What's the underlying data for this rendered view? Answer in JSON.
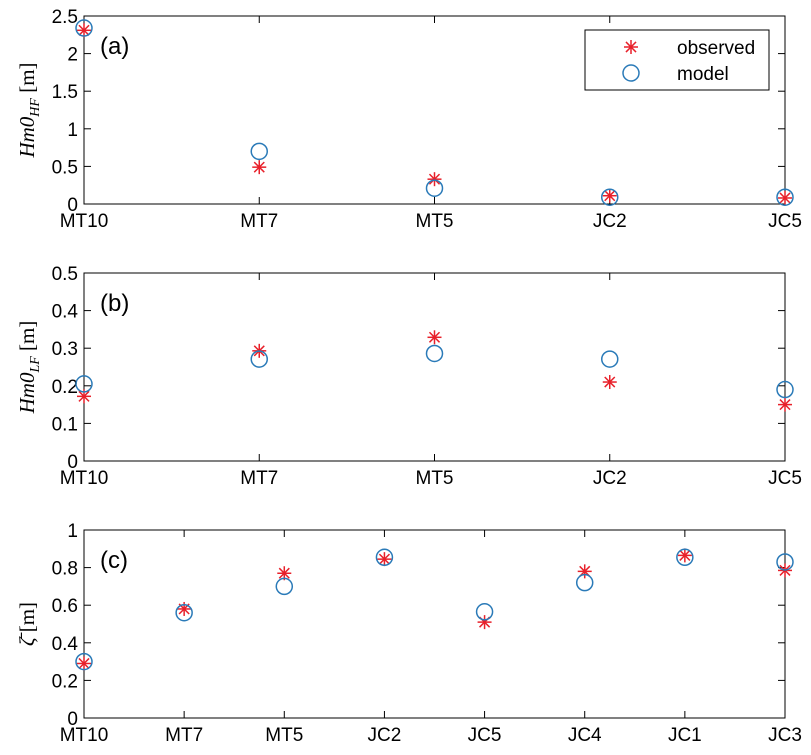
{
  "colors": {
    "observed": "#e8202a",
    "model": "#2a7ab8",
    "axis": "#000000"
  },
  "chart_data": [
    {
      "type": "scatter",
      "panel_label": "(a)",
      "ylabel": "Hm0_HF [m]",
      "ylabel_parts": {
        "main": "Hm0",
        "sub": "HF",
        "unit": "[m]"
      },
      "categories": [
        "MT10",
        "MT7",
        "MT5",
        "JC2",
        "JC5"
      ],
      "ylim": [
        0,
        2.5
      ],
      "yticks": [
        0,
        0.5,
        1,
        1.5,
        2,
        2.5
      ],
      "ytick_labels": [
        "0",
        "0.5",
        "1",
        "1.5",
        "2",
        "2.5"
      ],
      "legend_position": "top-right",
      "legend": [
        "observed",
        "model"
      ],
      "series": [
        {
          "name": "observed",
          "marker": "asterisk",
          "values": [
            2.31,
            0.49,
            0.33,
            0.11,
            0.08
          ]
        },
        {
          "name": "model",
          "marker": "circle",
          "values": [
            2.34,
            0.7,
            0.21,
            0.09,
            0.09
          ]
        }
      ]
    },
    {
      "type": "scatter",
      "panel_label": "(b)",
      "ylabel": "Hm0_LF [m]",
      "ylabel_parts": {
        "main": "Hm0",
        "sub": "LF",
        "unit": "[m]"
      },
      "categories": [
        "MT10",
        "MT7",
        "MT5",
        "JC2",
        "JC5"
      ],
      "ylim": [
        0,
        0.5
      ],
      "yticks": [
        0,
        0.1,
        0.2,
        0.3,
        0.4,
        0.5
      ],
      "ytick_labels": [
        "0",
        "0.1",
        "0.2",
        "0.3",
        "0.4",
        "0.5"
      ],
      "series": [
        {
          "name": "observed",
          "marker": "asterisk",
          "values": [
            0.172,
            0.293,
            0.329,
            0.21,
            0.15
          ]
        },
        {
          "name": "model",
          "marker": "circle",
          "values": [
            0.205,
            0.271,
            0.286,
            0.271,
            0.19
          ]
        }
      ]
    },
    {
      "type": "scatter",
      "panel_label": "(c)",
      "ylabel": "ζ̄ [m]",
      "ylabel_parts": {
        "main": "ζ̄",
        "sub": "",
        "unit": "[m]"
      },
      "categories": [
        "MT10",
        "MT7",
        "MT5",
        "JC2",
        "JC5",
        "JC4",
        "JC1",
        "JC3"
      ],
      "ylim": [
        0,
        1
      ],
      "yticks": [
        0,
        0.2,
        0.4,
        0.6,
        0.8,
        1
      ],
      "ytick_labels": [
        "0",
        "0.2",
        "0.4",
        "0.6",
        "0.8",
        "1"
      ],
      "series": [
        {
          "name": "observed",
          "marker": "asterisk",
          "values": [
            0.29,
            0.58,
            0.77,
            0.845,
            0.51,
            0.78,
            0.865,
            0.785
          ]
        },
        {
          "name": "model",
          "marker": "circle",
          "values": [
            0.3,
            0.56,
            0.7,
            0.855,
            0.565,
            0.72,
            0.855,
            0.83
          ]
        }
      ]
    }
  ]
}
